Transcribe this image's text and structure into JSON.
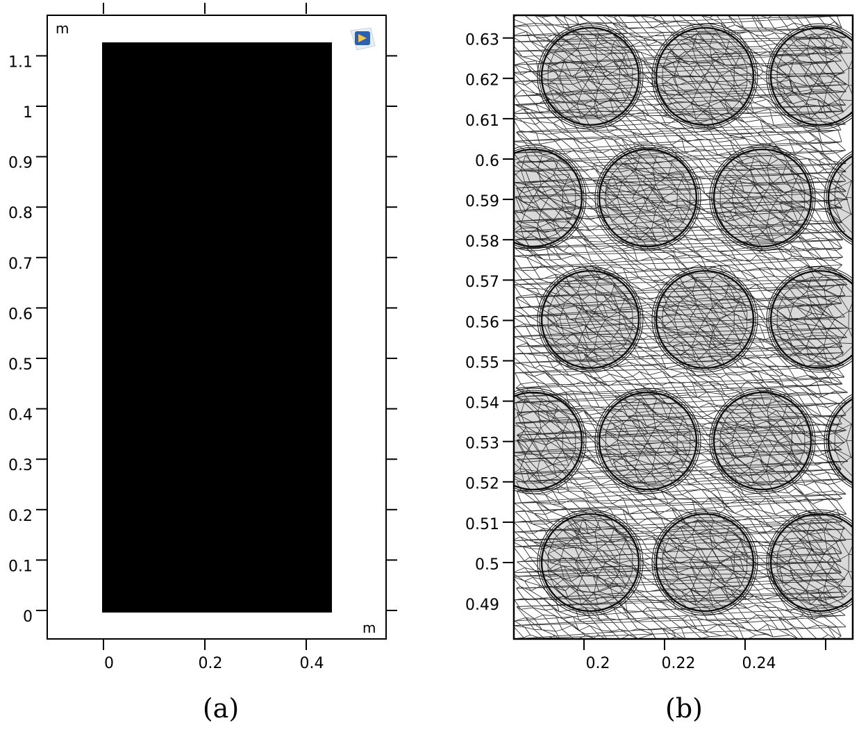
{
  "panel_a": {
    "caption": "(a)",
    "unit_top": "m",
    "unit_bottom": "m",
    "x_ticks": [
      "0",
      "0.2",
      "0.4"
    ],
    "y_ticks": [
      "0",
      "0.1",
      "0.2",
      "0.3",
      "0.4",
      "0.5",
      "0.6",
      "0.7",
      "0.8",
      "0.9",
      "1",
      "1.1"
    ],
    "logo_icon": "comsol-logo-icon",
    "domain_color": "#000000"
  },
  "panel_b": {
    "caption": "(b)",
    "x_ticks": [
      "0.2",
      "0.22",
      "0.24"
    ],
    "y_ticks": [
      "0.49",
      "0.5",
      "0.51",
      "0.52",
      "0.53",
      "0.54",
      "0.55",
      "0.56",
      "0.57",
      "0.58",
      "0.59",
      "0.6",
      "0.61",
      "0.62",
      "0.63"
    ],
    "particle_fill": "#d9d9d9",
    "mesh_color": "#111111"
  }
}
